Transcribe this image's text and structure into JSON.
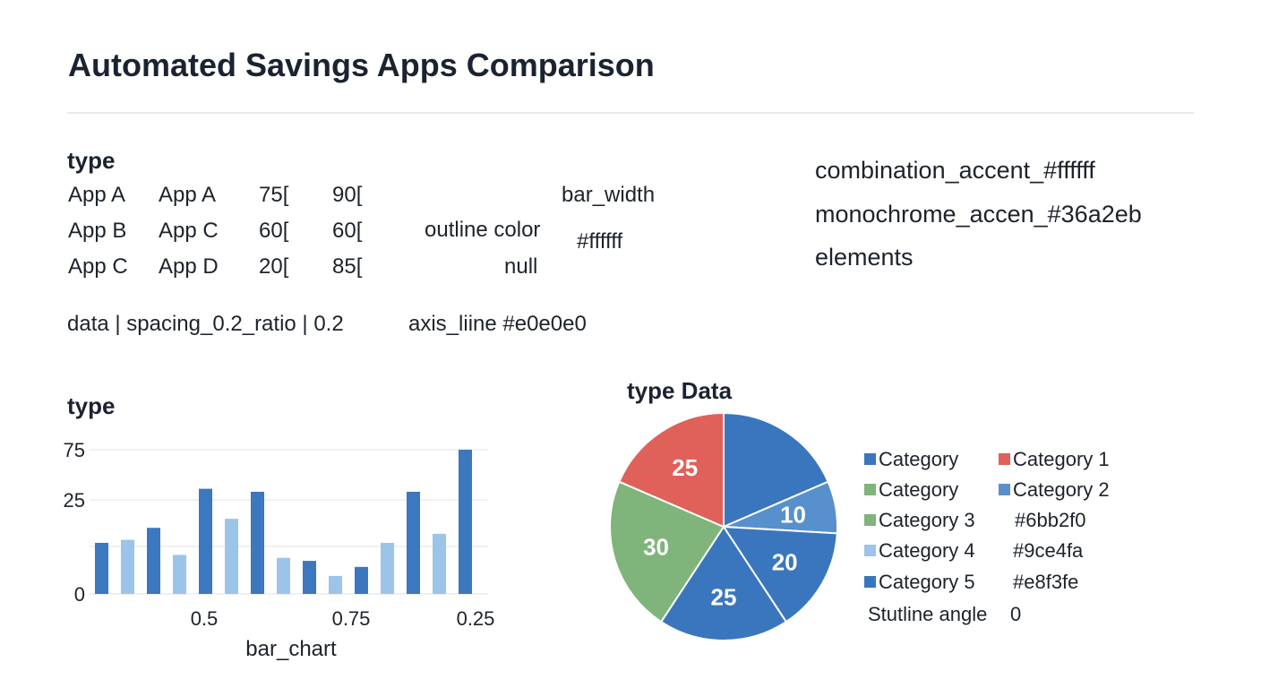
{
  "header": {
    "title": "Automated Savings Apps Comparison"
  },
  "spec": {
    "heading": "type",
    "rows": [
      [
        "App A",
        "App A",
        "75[",
        "90["
      ],
      [
        "App B",
        "App C",
        "60[",
        "60["
      ],
      [
        "App C",
        "App D",
        "20[",
        "85["
      ]
    ],
    "bar_width_label": "bar_width",
    "outline_color_label": "outline color",
    "outline_color_value": "#ffffff",
    "null_label": "null",
    "data_line": "data |  spacing_0.2_ratio | 0.2",
    "axis_line": "axis_liine #e0e0e0",
    "accents": [
      "combination_accent_#ffffff",
      "monochrome_accen_#36a2eb",
      "elements"
    ]
  },
  "chart_data": [
    {
      "type": "bar",
      "title": "type",
      "xlabel": "bar_chart",
      "ylabel": "",
      "y_tick_labels": [
        "0",
        "25",
        "75"
      ],
      "x_tick_labels": [
        "0.5",
        "0.75",
        "0.25"
      ],
      "values": [
        17,
        18,
        22,
        13,
        35,
        25,
        34,
        12,
        11,
        6,
        9,
        17,
        34,
        20,
        48
      ],
      "colors": [
        "#3b78bf",
        "#9cc4e8",
        "#3b78bf",
        "#9cc4e8",
        "#3b78bf",
        "#9cc4e8",
        "#3b78bf",
        "#9cc4e8",
        "#3b78bf",
        "#9cc4e8",
        "#3b78bf",
        "#9cc4e8",
        "#3b78bf",
        "#9cc4e8",
        "#3b78bf"
      ],
      "ylim": [
        0,
        48
      ],
      "grid": true,
      "axis_color": "#e0e0e0"
    },
    {
      "type": "pie",
      "title": "type Data",
      "values": [
        25,
        10,
        20,
        25,
        30,
        25
      ],
      "slice_labels": [
        "",
        "10",
        "20",
        "25",
        "30",
        "25"
      ],
      "colors": [
        "#3a76bd",
        "#5790cc",
        "#3a76bd",
        "#3a76bd",
        "#7fb47a",
        "#e0605a"
      ],
      "start_angle": 0,
      "legend_position": "right",
      "legend": [
        {
          "label": "Category",
          "color": "#3a76bd"
        },
        {
          "label": "Category 1",
          "color": "#e0605a"
        },
        {
          "label": "Category",
          "color": "#7fb47a"
        },
        {
          "label": "Category 2",
          "color": "#5a8ec8"
        },
        {
          "label": "Category 3",
          "color": "#7fb47a"
        },
        {
          "label": "#6bb2f0",
          "color": ""
        },
        {
          "label": "Category 4",
          "color": "#9cc4e8"
        },
        {
          "label": "#9ce4fa",
          "color": ""
        },
        {
          "label": "Category 5",
          "color": "#3a76bd"
        },
        {
          "label": "#e8f3fe",
          "color": ""
        }
      ],
      "footer_label": "Stutline angle",
      "footer_value": "0"
    }
  ]
}
